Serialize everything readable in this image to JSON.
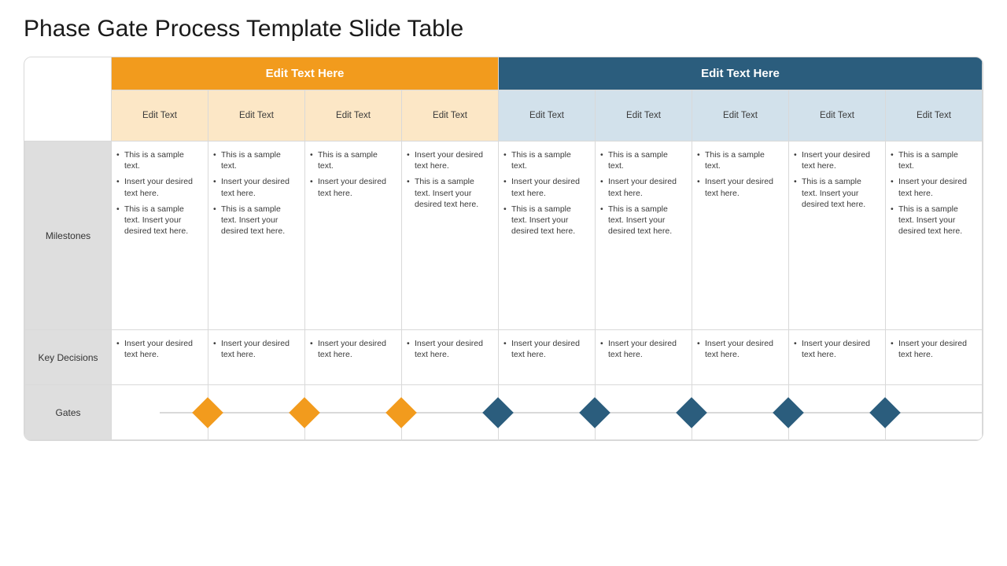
{
  "title": "Phase Gate Process Template Slide Table",
  "colors": {
    "group1_header": "#f29b1d",
    "group1_sub": "#fce7c6",
    "group2_header": "#2b5d7d",
    "group2_sub": "#d2e1eb",
    "rowlabel_bg": "#dedede",
    "border": "#d9d9d9",
    "diamond1": "#f29b1d",
    "diamond2": "#2b5d7d"
  },
  "groups": [
    {
      "label": "Edit Text Here",
      "span": 4
    },
    {
      "label": "Edit Text Here",
      "span": 5
    }
  ],
  "columns": [
    {
      "label": "Edit Text",
      "group": 0
    },
    {
      "label": "Edit Text",
      "group": 0
    },
    {
      "label": "Edit Text",
      "group": 0
    },
    {
      "label": "Edit Text",
      "group": 0
    },
    {
      "label": "Edit Text",
      "group": 1
    },
    {
      "label": "Edit Text",
      "group": 1
    },
    {
      "label": "Edit Text",
      "group": 1
    },
    {
      "label": "Edit Text",
      "group": 1
    },
    {
      "label": "Edit Text",
      "group": 1
    }
  ],
  "rows": {
    "milestones": {
      "label": "Milestones",
      "cells": [
        [
          "This is a sample text.",
          "Insert your desired text here.",
          "This is a sample text. Insert your desired text here."
        ],
        [
          "This is a sample text.",
          "Insert your desired text here.",
          "This is a sample text. Insert your desired text here."
        ],
        [
          "This is a sample text.",
          "Insert your desired text here."
        ],
        [
          "Insert your desired text here.",
          "This is a sample text. Insert your desired text here."
        ],
        [
          "This is a sample text.",
          "Insert your desired text here.",
          "This is a sample text. Insert your desired text here."
        ],
        [
          "This is a sample text.",
          "Insert your desired text here.",
          "This is a sample text. Insert your desired text here."
        ],
        [
          "This is a sample text.",
          "Insert your desired text here."
        ],
        [
          "Insert your desired text here.",
          "This is a sample text. Insert your desired text here."
        ],
        [
          "This is a sample text.",
          "Insert your desired text here.",
          "This is a sample text. Insert your desired text here."
        ]
      ]
    },
    "decisions": {
      "label": "Key Decisions",
      "cells": [
        [
          "Insert your desired text here."
        ],
        [
          "Insert your desired text here."
        ],
        [
          "Insert your desired text here."
        ],
        [
          "Insert your desired text here."
        ],
        [
          "Insert your desired text here."
        ],
        [
          "Insert your desired text here."
        ],
        [
          "Insert your desired text here."
        ],
        [
          "Insert your desired text here."
        ],
        [
          "Insert your desired text here."
        ]
      ]
    },
    "gates": {
      "label": "Gates",
      "diamonds": [
        {
          "col": 0,
          "color": "#f29b1d"
        },
        {
          "col": 1,
          "color": "#f29b1d"
        },
        {
          "col": 2,
          "color": "#f29b1d"
        },
        {
          "col": 3,
          "color": "#2b5d7d"
        },
        {
          "col": 4,
          "color": "#2b5d7d"
        },
        {
          "col": 5,
          "color": "#2b5d7d"
        },
        {
          "col": 6,
          "color": "#2b5d7d"
        },
        {
          "col": 7,
          "color": "#2b5d7d"
        }
      ]
    }
  }
}
